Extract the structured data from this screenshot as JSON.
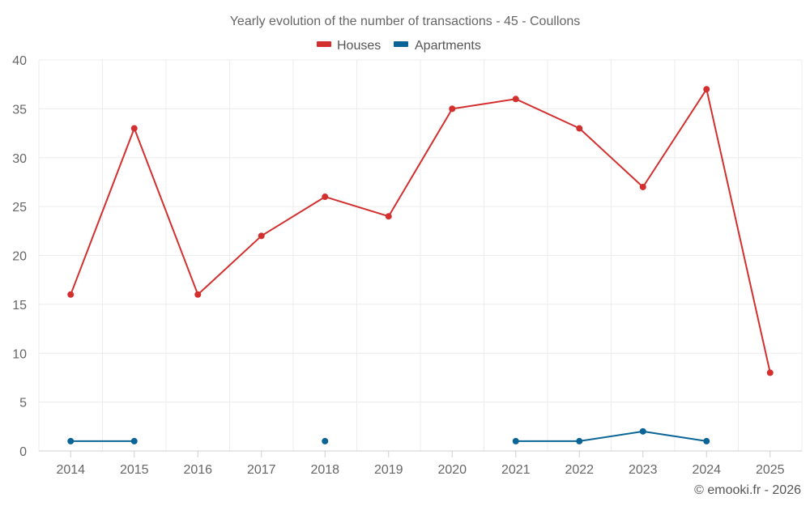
{
  "chart_data": {
    "type": "line",
    "title": "Yearly evolution of the number of transactions - 45 - Coullons",
    "categories": [
      "2014",
      "2015",
      "2016",
      "2017",
      "2018",
      "2019",
      "2020",
      "2021",
      "2022",
      "2023",
      "2024",
      "2025"
    ],
    "series": [
      {
        "name": "Houses",
        "color": "#d32f2f",
        "values": [
          16,
          33,
          16,
          22,
          26,
          24,
          35,
          36,
          33,
          27,
          37,
          8
        ]
      },
      {
        "name": "Apartments",
        "color": "#0b6496",
        "values": [
          1,
          1,
          null,
          null,
          1,
          null,
          null,
          1,
          1,
          2,
          1,
          null
        ]
      }
    ],
    "ylim": [
      0,
      40
    ],
    "yticks": [
      0,
      5,
      10,
      15,
      20,
      25,
      30,
      35,
      40
    ],
    "xlabel": "",
    "ylabel": "",
    "grid": true,
    "legend_position": "top-center"
  },
  "credit": "© emooki.fr - 2026"
}
